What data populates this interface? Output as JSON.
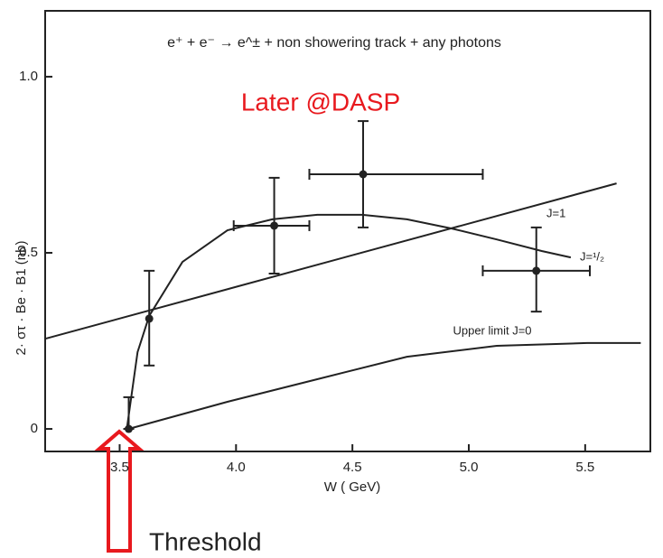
{
  "chart_data": {
    "type": "scatter",
    "title": "e⁺ + e⁻ → e^± + non showering track + any photons",
    "x_label": "W ( GeV)",
    "y_label": "2· στ · Be · B1   (nb)",
    "xlim": [
      3.18,
      5.78
    ],
    "ylim": [
      -0.064,
      1.187
    ],
    "xticks": [
      3.5,
      {
        "value": 4.0,
        "label": "4.0"
      },
      4.5,
      {
        "value": 5.0,
        "label": "5.0"
      },
      5.5
    ],
    "yticks": [
      0,
      0.5,
      {
        "value": 1.0,
        "label": "1.0"
      }
    ],
    "color": "#222222",
    "points": {
      "x": [
        3.539,
        3.627,
        4.164,
        4.546,
        5.29
      ],
      "values": [
        0,
        0.313,
        0.577,
        0.723,
        0.449
      ],
      "y_low": [
        0,
        0.18,
        0.441,
        0.572,
        0.333
      ],
      "y_high": [
        0.09,
        0.449,
        0.713,
        0.874,
        0.572
      ],
      "x_low": [
        null,
        null,
        3.99,
        4.315,
        5.06
      ],
      "x_high": [
        null,
        null,
        4.315,
        5.06,
        5.52
      ]
    },
    "curves": [
      {
        "name": "J=1",
        "x": [
          3.18,
          5.635
        ],
        "values": [
          0.256,
          0.697
        ]
      },
      {
        "name": "J=¹/₂",
        "x": [
          3.531,
          3.577,
          3.627,
          3.77,
          3.963,
          4.156,
          4.349,
          4.542,
          4.734,
          4.927,
          5.12,
          5.313,
          5.438
        ],
        "values": [
          0,
          0.218,
          0.321,
          0.474,
          0.564,
          0.595,
          0.608,
          0.608,
          0.595,
          0.569,
          0.538,
          0.505,
          0.487
        ]
      },
      {
        "name": "Upper limit  J=0",
        "x": [
          3.539,
          3.963,
          4.349,
          4.734,
          5.12,
          5.508,
          5.739
        ],
        "values": [
          0,
          0.077,
          0.141,
          0.205,
          0.236,
          0.244,
          0.244
        ]
      }
    ],
    "annotations": {
      "later": "Later @DASP",
      "threshold": "Threshold"
    },
    "annotation_color": "#e8191e"
  }
}
